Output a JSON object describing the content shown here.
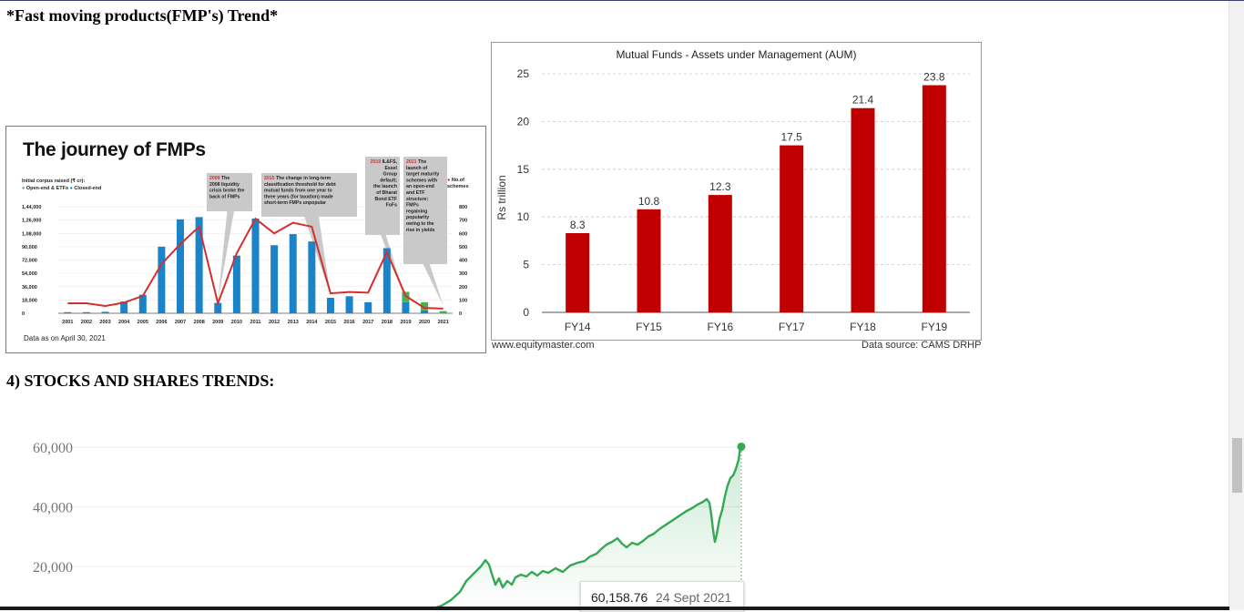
{
  "headings": {
    "fmp_trend": "*Fast moving products(FMP's) Trend*",
    "stocks": "4) STOCKS AND SHARES TRENDS:"
  },
  "fmp_figure": {
    "title": "The journey of FMPs",
    "legend_title": "Initial corpus raised (₹ cr):",
    "legend_open": "Open-end & ETFs",
    "legend_closed": "Closed-end",
    "legend_schemes_line1": "No.of",
    "legend_schemes_line2": "schemes",
    "data_as_of": "Data as on April 30, 2021",
    "annotations": [
      {
        "year": "2009",
        "text": [
          "The",
          "2008 liquidity",
          "crisis broke the",
          "back of FMPs"
        ]
      },
      {
        "year": "2015",
        "text": [
          "The change in long-term",
          "classification threshold for debt",
          "mutual funds from one year to",
          "three years (for taxation) made",
          "short-term FMPs unpopular"
        ]
      },
      {
        "year": "2019",
        "text": [
          "IL&FS,",
          "Essel",
          "Group",
          "default;",
          "the launch",
          "of Bharat",
          "Bond ETF",
          "FoFs"
        ]
      },
      {
        "year": "2021",
        "text": [
          "The",
          "launch of",
          "target maturity",
          "schemes with",
          "an open-end",
          "and ETF",
          "structure;",
          "FMPs",
          "regaining",
          "popularity",
          "owing to the",
          "rise in yields"
        ]
      }
    ],
    "colors": {
      "closed": "#1b84c8",
      "open": "#4caf50",
      "line": "#d32f2f",
      "note_bg": "#c9c9c9",
      "year_red": "#d32f2f"
    }
  },
  "aum": {
    "title": "Mutual Funds - Assets under Management (AUM)",
    "source_left": "www.equitymaster.com",
    "source_right": "Data source: CAMS DRHP",
    "bar_color": "#c00000"
  },
  "stock": {
    "tooltip_value": "60,158.76",
    "tooltip_date": "24 Sept 2021",
    "line_color": "#34a853"
  },
  "chart_data": [
    {
      "type": "bar",
      "title": "The journey of FMPs",
      "categories": [
        "2001",
        "2002",
        "2003",
        "2004",
        "2005",
        "2006",
        "2007",
        "2008",
        "2009",
        "2010",
        "2011",
        "2012",
        "2013",
        "2014",
        "2015",
        "2016",
        "2017",
        "2018",
        "2019",
        "2020",
        "2021"
      ],
      "series": [
        {
          "name": "Closed-end",
          "values": [
            1500,
            1500,
            2000,
            16000,
            25000,
            90000,
            127000,
            130000,
            14000,
            78000,
            128000,
            92000,
            107000,
            97000,
            21000,
            23000,
            15000,
            88000,
            15000,
            4000,
            1000
          ]
        },
        {
          "name": "Open-end & ETFs",
          "values": [
            0,
            0,
            0,
            0,
            0,
            0,
            0,
            0,
            0,
            0,
            0,
            0,
            0,
            0,
            0,
            0,
            0,
            0,
            14000,
            11000,
            2000
          ]
        },
        {
          "name": "No.of schemes",
          "values": [
            75,
            75,
            55,
            80,
            130,
            370,
            520,
            650,
            75,
            450,
            710,
            600,
            680,
            650,
            150,
            160,
            155,
            460,
            130,
            40,
            35
          ]
        }
      ],
      "yticks_left": [
        "0",
        "18,000",
        "36,000",
        "54,000",
        "72,000",
        "90,000",
        "1,08,000",
        "1,26,000",
        "1,44,000"
      ],
      "yticks_right": [
        "0",
        "100",
        "200",
        "300",
        "400",
        "500",
        "600",
        "700",
        "800"
      ],
      "ylim": [
        0,
        144000
      ],
      "ylim_right": [
        0,
        800
      ]
    },
    {
      "type": "bar",
      "title": "Mutual Funds - Assets under Management (AUM)",
      "categories": [
        "FY14",
        "FY15",
        "FY16",
        "FY17",
        "FY18",
        "FY19"
      ],
      "values": [
        8.3,
        10.8,
        12.3,
        17.5,
        21.4,
        23.8
      ],
      "value_labels": [
        "8.3",
        "10.8",
        "12.3",
        "17.5",
        "21.4",
        "23.8"
      ],
      "ylabel": "Rs trillion",
      "yticks": [
        "0",
        "5",
        "10",
        "15",
        "20",
        "25"
      ],
      "ylim": [
        0,
        25
      ],
      "grid": true
    },
    {
      "type": "line",
      "yticks": [
        "20,000",
        "40,000",
        "60,000"
      ],
      "y_end": 60158.76,
      "x_end": "24 Sept 2021"
    }
  ]
}
